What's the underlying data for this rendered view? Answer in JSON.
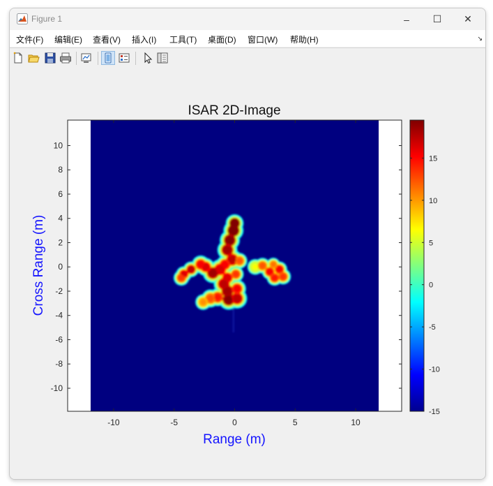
{
  "window": {
    "title": "Figure 1",
    "controls": {
      "minimize": "–",
      "maximize": "☐",
      "close": "✕"
    }
  },
  "menubar": {
    "items": [
      {
        "label": "文件(F)"
      },
      {
        "label": "编辑(E)"
      },
      {
        "label": "查看(V)"
      },
      {
        "label": "插入(I)"
      },
      {
        "label": "工具(T)"
      },
      {
        "label": "桌面(D)"
      },
      {
        "label": "窗口(W)"
      },
      {
        "label": "帮助(H)"
      }
    ]
  },
  "toolbar": {
    "icons": [
      "new-figure-icon",
      "open-file-icon",
      "save-icon",
      "print-icon",
      "link-plot-icon",
      "hide-plot-tools-icon",
      "show-plot-tools-icon",
      "edit-plot-icon",
      "open-property-inspector-icon"
    ]
  },
  "chart_data": {
    "type": "heatmap",
    "title": "ISAR 2D-Image",
    "xlabel": "Range (m)",
    "ylabel": "Cross Range (m)",
    "xlim": [
      -13.8,
      13.8
    ],
    "ylim": [
      -11.9,
      12.1
    ],
    "image_extent_x": [
      -11.9,
      11.9
    ],
    "xticks": [
      -10,
      -5,
      0,
      5,
      10
    ],
    "yticks": [
      -10,
      -8,
      -6,
      -4,
      -2,
      0,
      2,
      4,
      6,
      8,
      10
    ],
    "colormap": "jet",
    "background_color": "#000080",
    "colorbar": {
      "range": [
        -15,
        19.5
      ],
      "ticks": [
        -15,
        -10,
        -5,
        0,
        5,
        10,
        15
      ]
    },
    "blobs": [
      {
        "x": 0.0,
        "y": 3.6,
        "r": 0.4,
        "value": 19
      },
      {
        "x": -0.1,
        "y": 3.0,
        "r": 0.45,
        "value": 19
      },
      {
        "x": -0.4,
        "y": 2.2,
        "r": 0.45,
        "value": 18
      },
      {
        "x": -0.6,
        "y": 1.4,
        "r": 0.45,
        "value": 17
      },
      {
        "x": -0.2,
        "y": 0.6,
        "r": 0.45,
        "value": 16
      },
      {
        "x": -0.8,
        "y": 0.2,
        "r": 0.4,
        "value": 14
      },
      {
        "x": -1.2,
        "y": -0.2,
        "r": 0.45,
        "value": 15
      },
      {
        "x": -1.8,
        "y": -0.5,
        "r": 0.45,
        "value": 17
      },
      {
        "x": -2.4,
        "y": 0.0,
        "r": 0.4,
        "value": 15
      },
      {
        "x": -2.8,
        "y": 0.2,
        "r": 0.4,
        "value": 14
      },
      {
        "x": -3.6,
        "y": -0.2,
        "r": 0.35,
        "value": 16
      },
      {
        "x": -4.2,
        "y": -0.6,
        "r": 0.35,
        "value": 15
      },
      {
        "x": -4.4,
        "y": -0.9,
        "r": 0.35,
        "value": 12
      },
      {
        "x": -0.6,
        "y": -0.9,
        "r": 0.4,
        "value": 15
      },
      {
        "x": -0.9,
        "y": -1.4,
        "r": 0.45,
        "value": 16
      },
      {
        "x": -0.6,
        "y": -2.0,
        "r": 0.45,
        "value": 17
      },
      {
        "x": -0.5,
        "y": -2.7,
        "r": 0.45,
        "value": 18
      },
      {
        "x": 0.2,
        "y": -2.6,
        "r": 0.45,
        "value": 16
      },
      {
        "x": 0.2,
        "y": -1.8,
        "r": 0.4,
        "value": 14
      },
      {
        "x": -1.4,
        "y": -2.5,
        "r": 0.4,
        "value": 13
      },
      {
        "x": -2.0,
        "y": -2.6,
        "r": 0.4,
        "value": 11
      },
      {
        "x": -2.6,
        "y": -2.9,
        "r": 0.35,
        "value": 9
      },
      {
        "x": 0.4,
        "y": 0.5,
        "r": 0.35,
        "value": 11
      },
      {
        "x": 0.1,
        "y": -0.6,
        "r": 0.35,
        "value": 12
      },
      {
        "x": 1.7,
        "y": 0.0,
        "r": 0.35,
        "value": 5
      },
      {
        "x": 2.3,
        "y": 0.1,
        "r": 0.35,
        "value": 11
      },
      {
        "x": 2.9,
        "y": -0.4,
        "r": 0.35,
        "value": 14
      },
      {
        "x": 3.3,
        "y": -0.9,
        "r": 0.35,
        "value": 13
      },
      {
        "x": 3.7,
        "y": -0.2,
        "r": 0.35,
        "value": 14
      },
      {
        "x": 4.0,
        "y": -0.8,
        "r": 0.35,
        "value": 12
      },
      {
        "x": 3.2,
        "y": 0.2,
        "r": 0.3,
        "value": 10
      }
    ]
  }
}
